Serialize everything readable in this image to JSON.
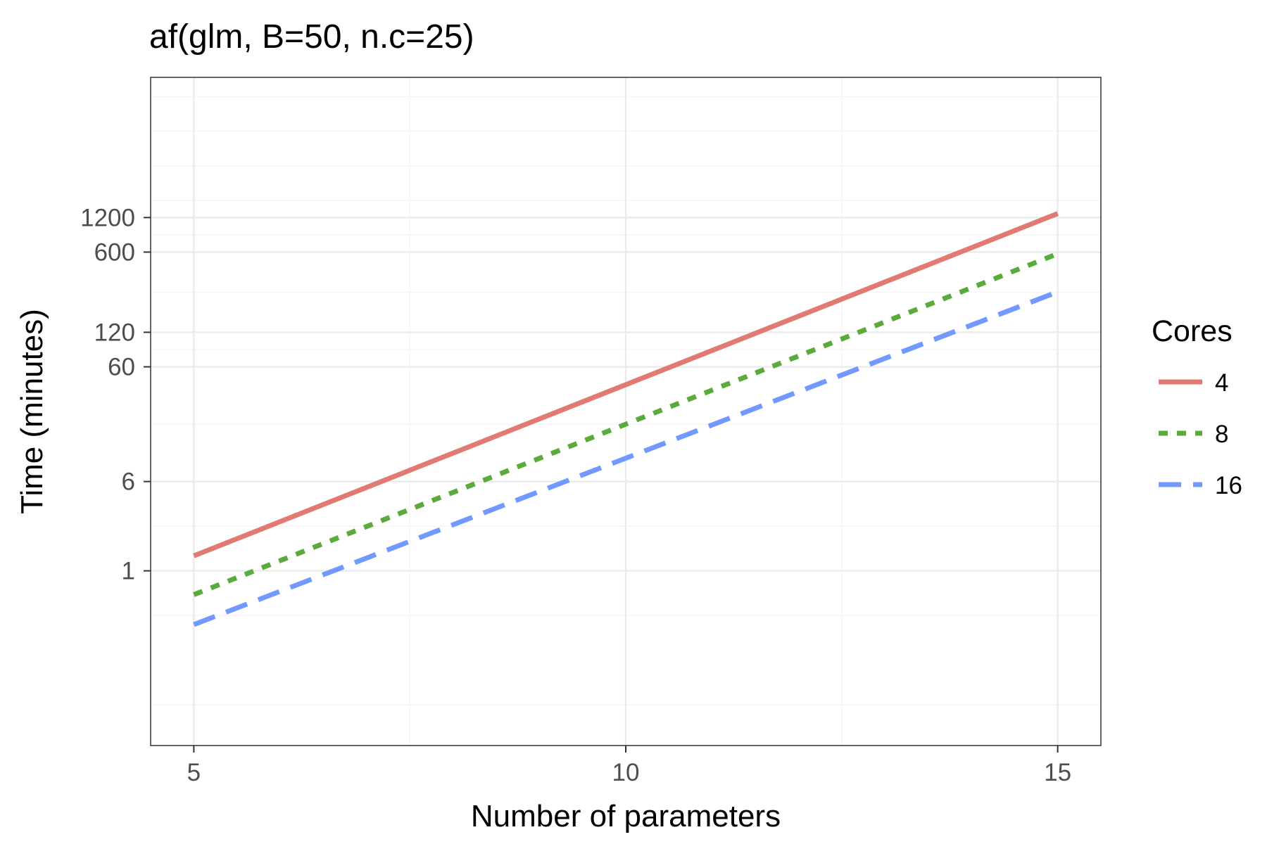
{
  "chart_data": {
    "type": "line",
    "title": "af(glm, B=50, n.c=25)",
    "xlabel": "Number of parameters",
    "ylabel": "Time (minutes)",
    "x": [
      5,
      15
    ],
    "xlim": [
      4.5,
      15.5
    ],
    "xticks": [
      5,
      10,
      15
    ],
    "xtick_labels": [
      "5",
      "10",
      "15"
    ],
    "y_scale": "log",
    "ylim": [
      0.03,
      20000
    ],
    "yticks": [
      1,
      6,
      60,
      120,
      600,
      1200
    ],
    "ytick_labels": [
      "1",
      "6",
      "60",
      "120",
      "600",
      "1200"
    ],
    "grid": true,
    "legend": {
      "title": "Cores",
      "position": "right"
    },
    "series": [
      {
        "name": "4",
        "color": "#e07a72",
        "dash": "solid",
        "values": [
          1.35,
          1300
        ]
      },
      {
        "name": "8",
        "color": "#5aaa3c",
        "dash": "dotted",
        "values": [
          0.62,
          580
        ]
      },
      {
        "name": "16",
        "color": "#7199ff",
        "dash": "dashed",
        "values": [
          0.34,
          270
        ]
      }
    ]
  }
}
